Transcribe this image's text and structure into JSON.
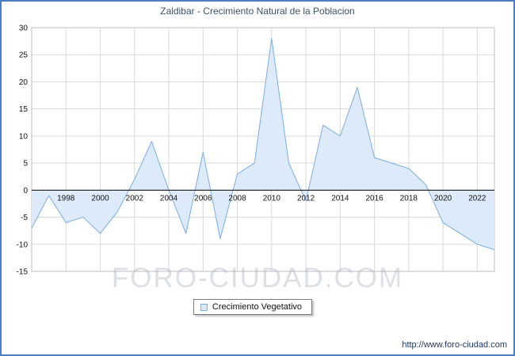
{
  "chart_data": {
    "type": "area",
    "title": "Zaldibar - Crecimiento Natural de la Poblacion",
    "legend_label": "Crecimiento Vegetativo",
    "x": [
      1996,
      1997,
      1998,
      1999,
      2000,
      2001,
      2002,
      2003,
      2004,
      2005,
      2006,
      2007,
      2008,
      2009,
      2010,
      2011,
      2012,
      2013,
      2014,
      2015,
      2016,
      2017,
      2018,
      2019,
      2020,
      2021,
      2022,
      2023
    ],
    "values": [
      -7,
      -1,
      -6,
      -5,
      -8,
      -4,
      2,
      9,
      0,
      -8,
      7,
      -9,
      3,
      5,
      28,
      5,
      -2,
      12,
      10,
      19,
      6,
      5,
      4,
      1,
      -6,
      -8,
      -10,
      -11
    ],
    "baseline": 0,
    "ylim": [
      -15,
      30
    ],
    "ytick_step": 5,
    "yticks": [
      30,
      25,
      20,
      15,
      10,
      5,
      0,
      -5,
      -10,
      -15
    ],
    "xticks": [
      1998,
      2000,
      2002,
      2004,
      2006,
      2008,
      2010,
      2012,
      2014,
      2016,
      2018,
      2020,
      2022
    ],
    "grid": true,
    "legend_position": "bottom",
    "colors": {
      "line": "#7aade0",
      "fill": "#ddeafa",
      "grid": "#d9d9d9",
      "zero_axis": "#000000",
      "plot_border": "#b9bec4",
      "tick_text": "#111111"
    }
  },
  "watermark": {
    "text": "FORO-CIUDAD.COM"
  },
  "footer": {
    "url": "http://www.foro-ciudad.com"
  },
  "frame": {
    "border_color": "#4c7dbe"
  }
}
